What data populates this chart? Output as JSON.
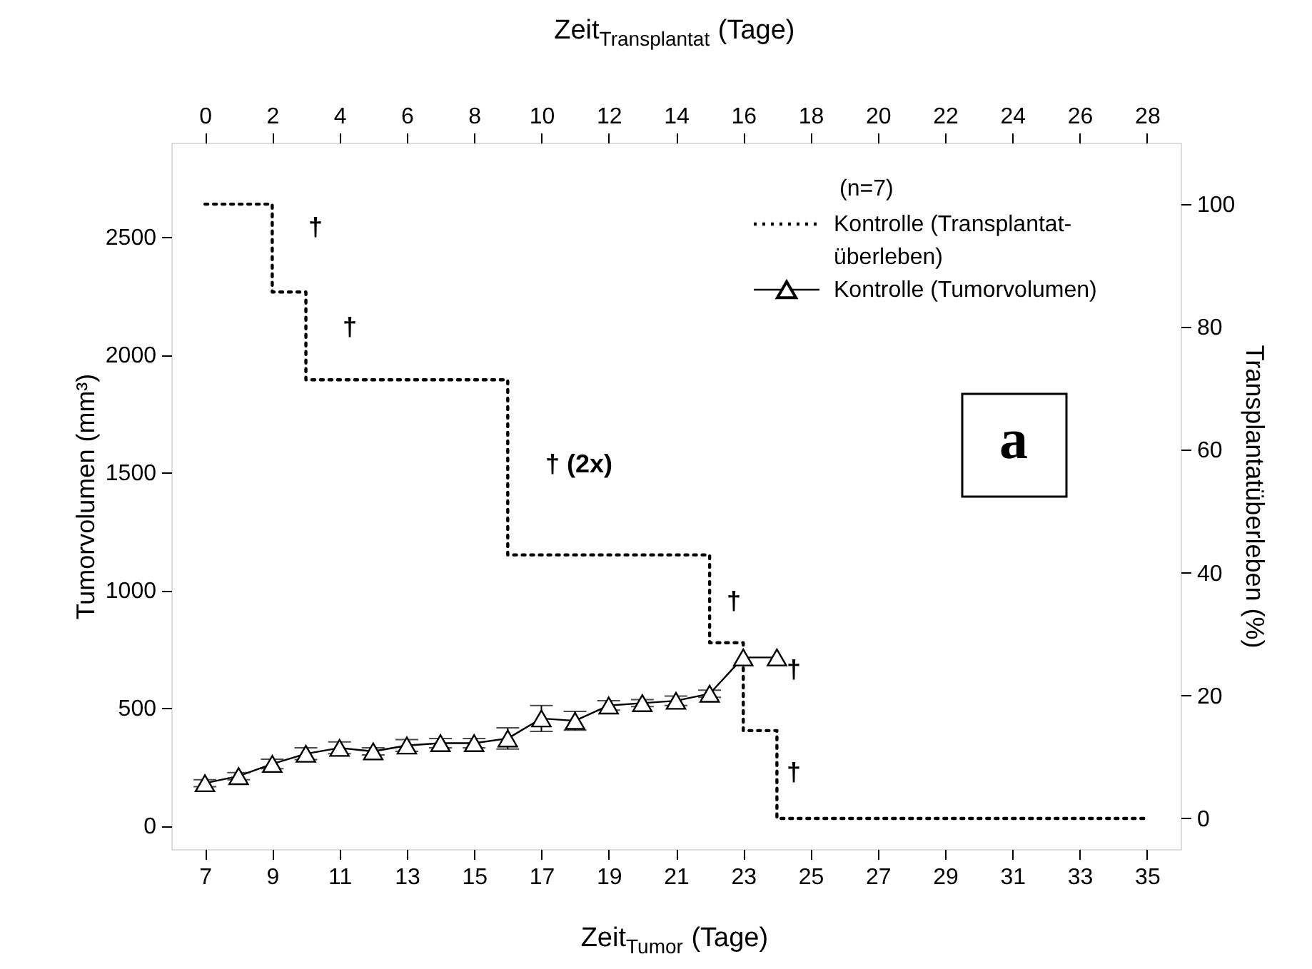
{
  "chart_data": {
    "type": "line",
    "xlabel": "Zeit$_{Tumor}$ (Tage)",
    "x2label": "Zeit$_{Transplantat}$ (Tage)",
    "ylabel": "Tumorvolumen (mm³)",
    "y2label": "Transplantatüberleben (%)",
    "legend_title": "(n=7)",
    "legend": "top right",
    "grid": false,
    "xlim": [
      6,
      36
    ],
    "xticks": [
      7,
      9,
      11,
      13,
      15,
      17,
      19,
      21,
      23,
      25,
      27,
      29,
      31,
      33,
      35
    ],
    "x2lim": [
      -1,
      29
    ],
    "x2ticks": [
      0,
      2,
      4,
      6,
      8,
      10,
      12,
      14,
      16,
      18,
      20,
      22,
      24,
      26,
      28
    ],
    "ylim": [
      -100,
      2900
    ],
    "yticks": [
      0,
      500,
      1000,
      1500,
      2000,
      2500
    ],
    "y2lim": [
      -5,
      110
    ],
    "y2ticks": [
      0,
      20,
      40,
      60,
      80,
      100
    ],
    "series": [
      {
        "name": "Kontrolle (Transplantat-überleben)",
        "type": "step",
        "axis": "y2",
        "color": "#000000",
        "line_style": "dotted",
        "marker": "none",
        "x": [
          7,
          9,
          10,
          16,
          22,
          23,
          24,
          35
        ],
        "values": [
          100,
          85.7,
          71.4,
          42.9,
          28.6,
          14.3,
          0,
          0
        ]
      },
      {
        "name": "Kontrolle (Tumorvolumen)",
        "type": "line",
        "color": "#000000",
        "line_style": "solid",
        "marker": "triangle",
        "x": [
          7,
          8,
          9,
          10,
          11,
          12,
          13,
          14,
          15,
          16,
          17,
          18,
          19,
          20,
          21,
          22,
          23,
          24
        ],
        "values": [
          180,
          210,
          262,
          305,
          330,
          315,
          340,
          350,
          350,
          370,
          455,
          445,
          510,
          520,
          530,
          560,
          714,
          714
        ],
        "errors": [
          15,
          15,
          20,
          25,
          25,
          15,
          25,
          20,
          20,
          45,
          55,
          40,
          20,
          15,
          20,
          15,
          null,
          null
        ]
      }
    ],
    "annotations": [
      "†",
      "†",
      "† (2x)",
      "†",
      "†",
      "†",
      "a"
    ]
  }
}
